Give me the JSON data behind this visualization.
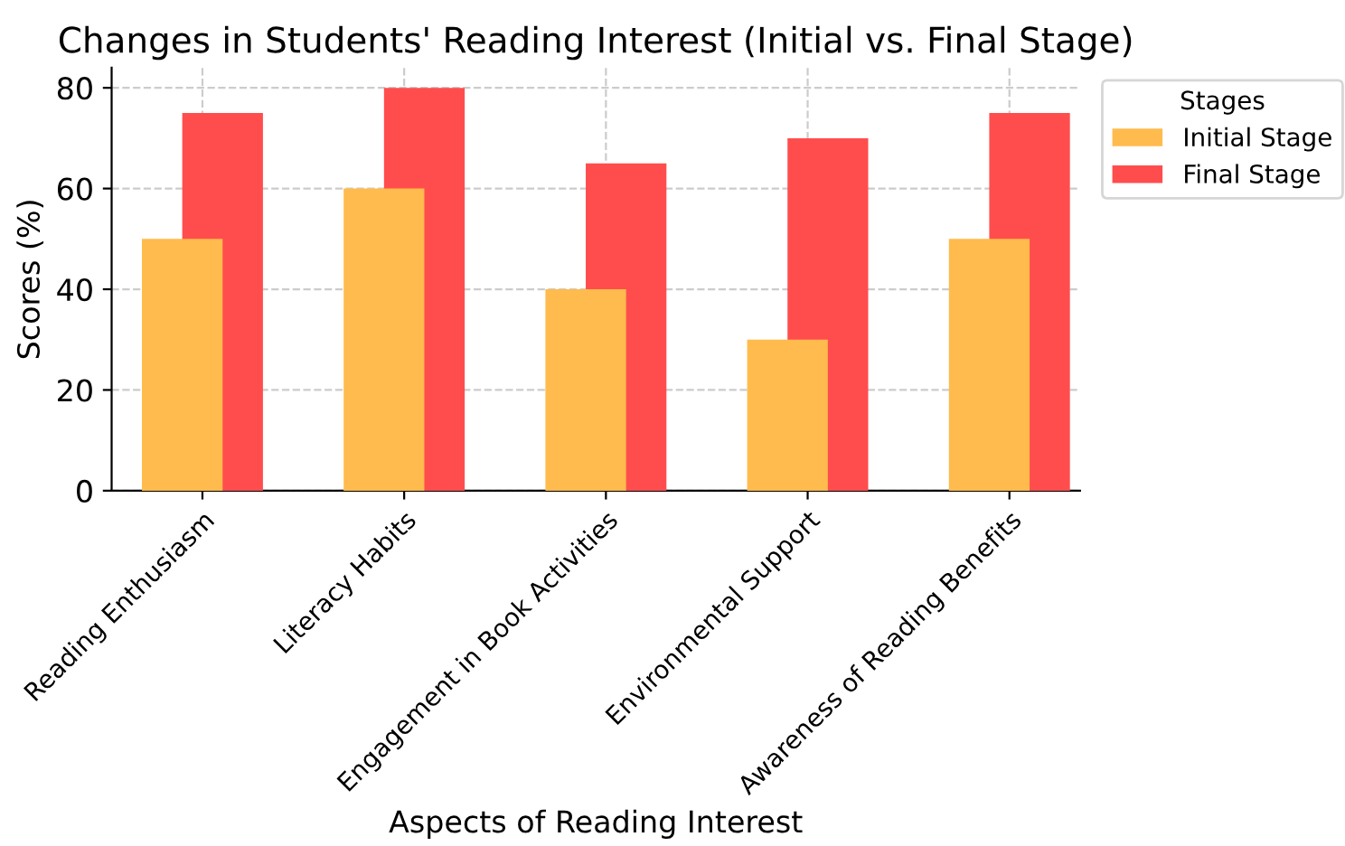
{
  "chart_data": {
    "type": "bar",
    "title": "Changes in Students' Reading Interest (Initial vs. Final Stage)",
    "xlabel": "Aspects of Reading Interest",
    "ylabel": "Scores (%)",
    "categories": [
      "Reading Enthusiasm",
      "Literacy Habits",
      "Engagement in Book Activities",
      "Environmental Support",
      "Awareness of Reading Benefits"
    ],
    "series": [
      {
        "name": "Initial Stage",
        "color": "#ffbb4d",
        "values": [
          50,
          60,
          40,
          30,
          50
        ]
      },
      {
        "name": "Final Stage",
        "color": "#ff4d4d",
        "values": [
          75,
          80,
          65,
          70,
          75
        ]
      }
    ],
    "ylim": [
      0,
      84
    ],
    "yticks": [
      0,
      20,
      40,
      60,
      80
    ],
    "grid": true,
    "legend": "top right",
    "legend_title": "Stages"
  }
}
